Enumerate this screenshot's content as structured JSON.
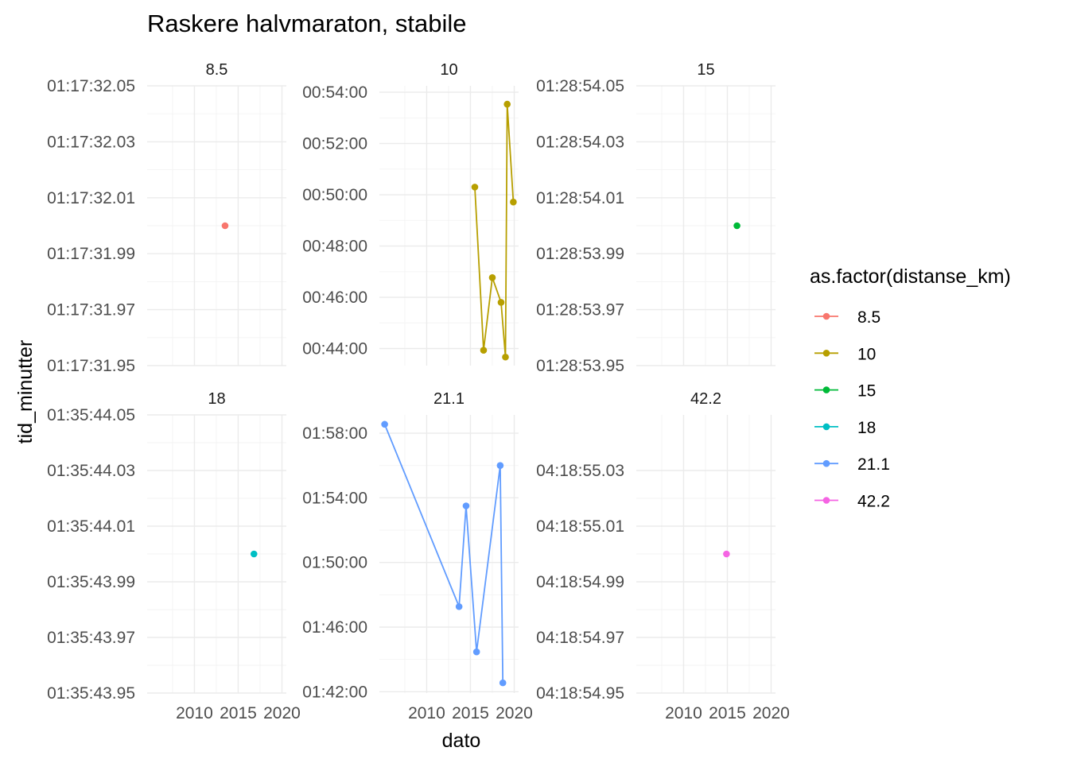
{
  "chart_data": {
    "type": "line",
    "title": "Raskere halvmaraton, stabile",
    "xlabel": "dato",
    "ylabel": "tid_minutter",
    "x_ticks": [
      "2010",
      "2015",
      "2020"
    ],
    "x_range": [
      2004.6,
      2020.5
    ],
    "legend": {
      "title": "as.factor(distanse_km)",
      "position": "right"
    },
    "grid": true,
    "series": [
      {
        "name": "8.5",
        "color": "#F8766D",
        "x": [
          2013.5
        ],
        "y_seconds": [
          4652.0
        ],
        "ylim_seconds": [
          4651.95,
          4652.05
        ],
        "y_ticks": [
          "01:17:32.05",
          "01:17:32.03",
          "01:17:32.01",
          "01:17:31.99",
          "01:17:31.97",
          "01:17:31.95"
        ],
        "y_tick_values": [
          4652.05,
          4652.03,
          4652.01,
          4651.99,
          4651.97,
          4651.95
        ]
      },
      {
        "name": "10",
        "color": "#B79F00",
        "x": [
          2015.5,
          2016.5,
          2017.5,
          2018.5,
          2019.0,
          2019.2,
          2019.9
        ],
        "y_seconds": [
          3018,
          2636,
          2806,
          2748,
          2620,
          3212,
          2983
        ],
        "ylim_seconds": [
          2600,
          3255
        ],
        "y_ticks": [
          "00:54:00",
          "00:52:00",
          "00:50:00",
          "00:48:00",
          "00:46:00",
          "00:44:00"
        ],
        "y_tick_values": [
          3240,
          3120,
          3000,
          2880,
          2760,
          2640
        ]
      },
      {
        "name": "15",
        "color": "#00BA38",
        "x": [
          2016.1
        ],
        "y_seconds": [
          5334.0
        ],
        "ylim_seconds": [
          5333.95,
          5334.05
        ],
        "y_ticks": [
          "01:28:54.05",
          "01:28:54.03",
          "01:28:54.01",
          "01:28:53.99",
          "01:28:53.97",
          "01:28:53.95"
        ],
        "y_tick_values": [
          5334.05,
          5334.03,
          5334.01,
          5333.99,
          5333.97,
          5333.95
        ]
      },
      {
        "name": "18",
        "color": "#00BFC4",
        "x": [
          2016.8
        ],
        "y_seconds": [
          5744.0
        ],
        "ylim_seconds": [
          5743.95,
          5744.05
        ],
        "y_ticks": [
          "01:35:44.05",
          "01:35:44.03",
          "01:35:44.01",
          "01:35:43.99",
          "01:35:43.97",
          "01:35:43.95"
        ],
        "y_tick_values": [
          5744.05,
          5744.03,
          5744.01,
          5743.99,
          5743.97,
          5743.95
        ]
      },
      {
        "name": "21.1",
        "color": "#619CFF",
        "x": [
          2005.2,
          2013.7,
          2014.5,
          2015.7,
          2018.4,
          2018.7
        ],
        "y_seconds": [
          7113,
          6436,
          6810,
          6268,
          6960,
          6153
        ],
        "ylim_seconds": [
          6115,
          7148
        ],
        "y_ticks": [
          "01:58:00",
          "01:54:00",
          "01:50:00",
          "01:46:00",
          "01:42:00"
        ],
        "y_tick_values": [
          7080,
          6840,
          6600,
          6360,
          6120
        ]
      },
      {
        "name": "42.2",
        "color": "#F564E3",
        "x": [
          2014.9
        ],
        "y_seconds": [
          15535.0
        ],
        "ylim_seconds": [
          15534.95,
          15535.05
        ],
        "y_ticks": [
          "04:18:55.03",
          "04:18:55.01",
          "04:18:54.99",
          "04:18:54.97",
          "04:18:54.95"
        ],
        "y_tick_values": [
          15535.03,
          15535.01,
          15534.99,
          15534.97,
          15534.95
        ]
      }
    ]
  }
}
